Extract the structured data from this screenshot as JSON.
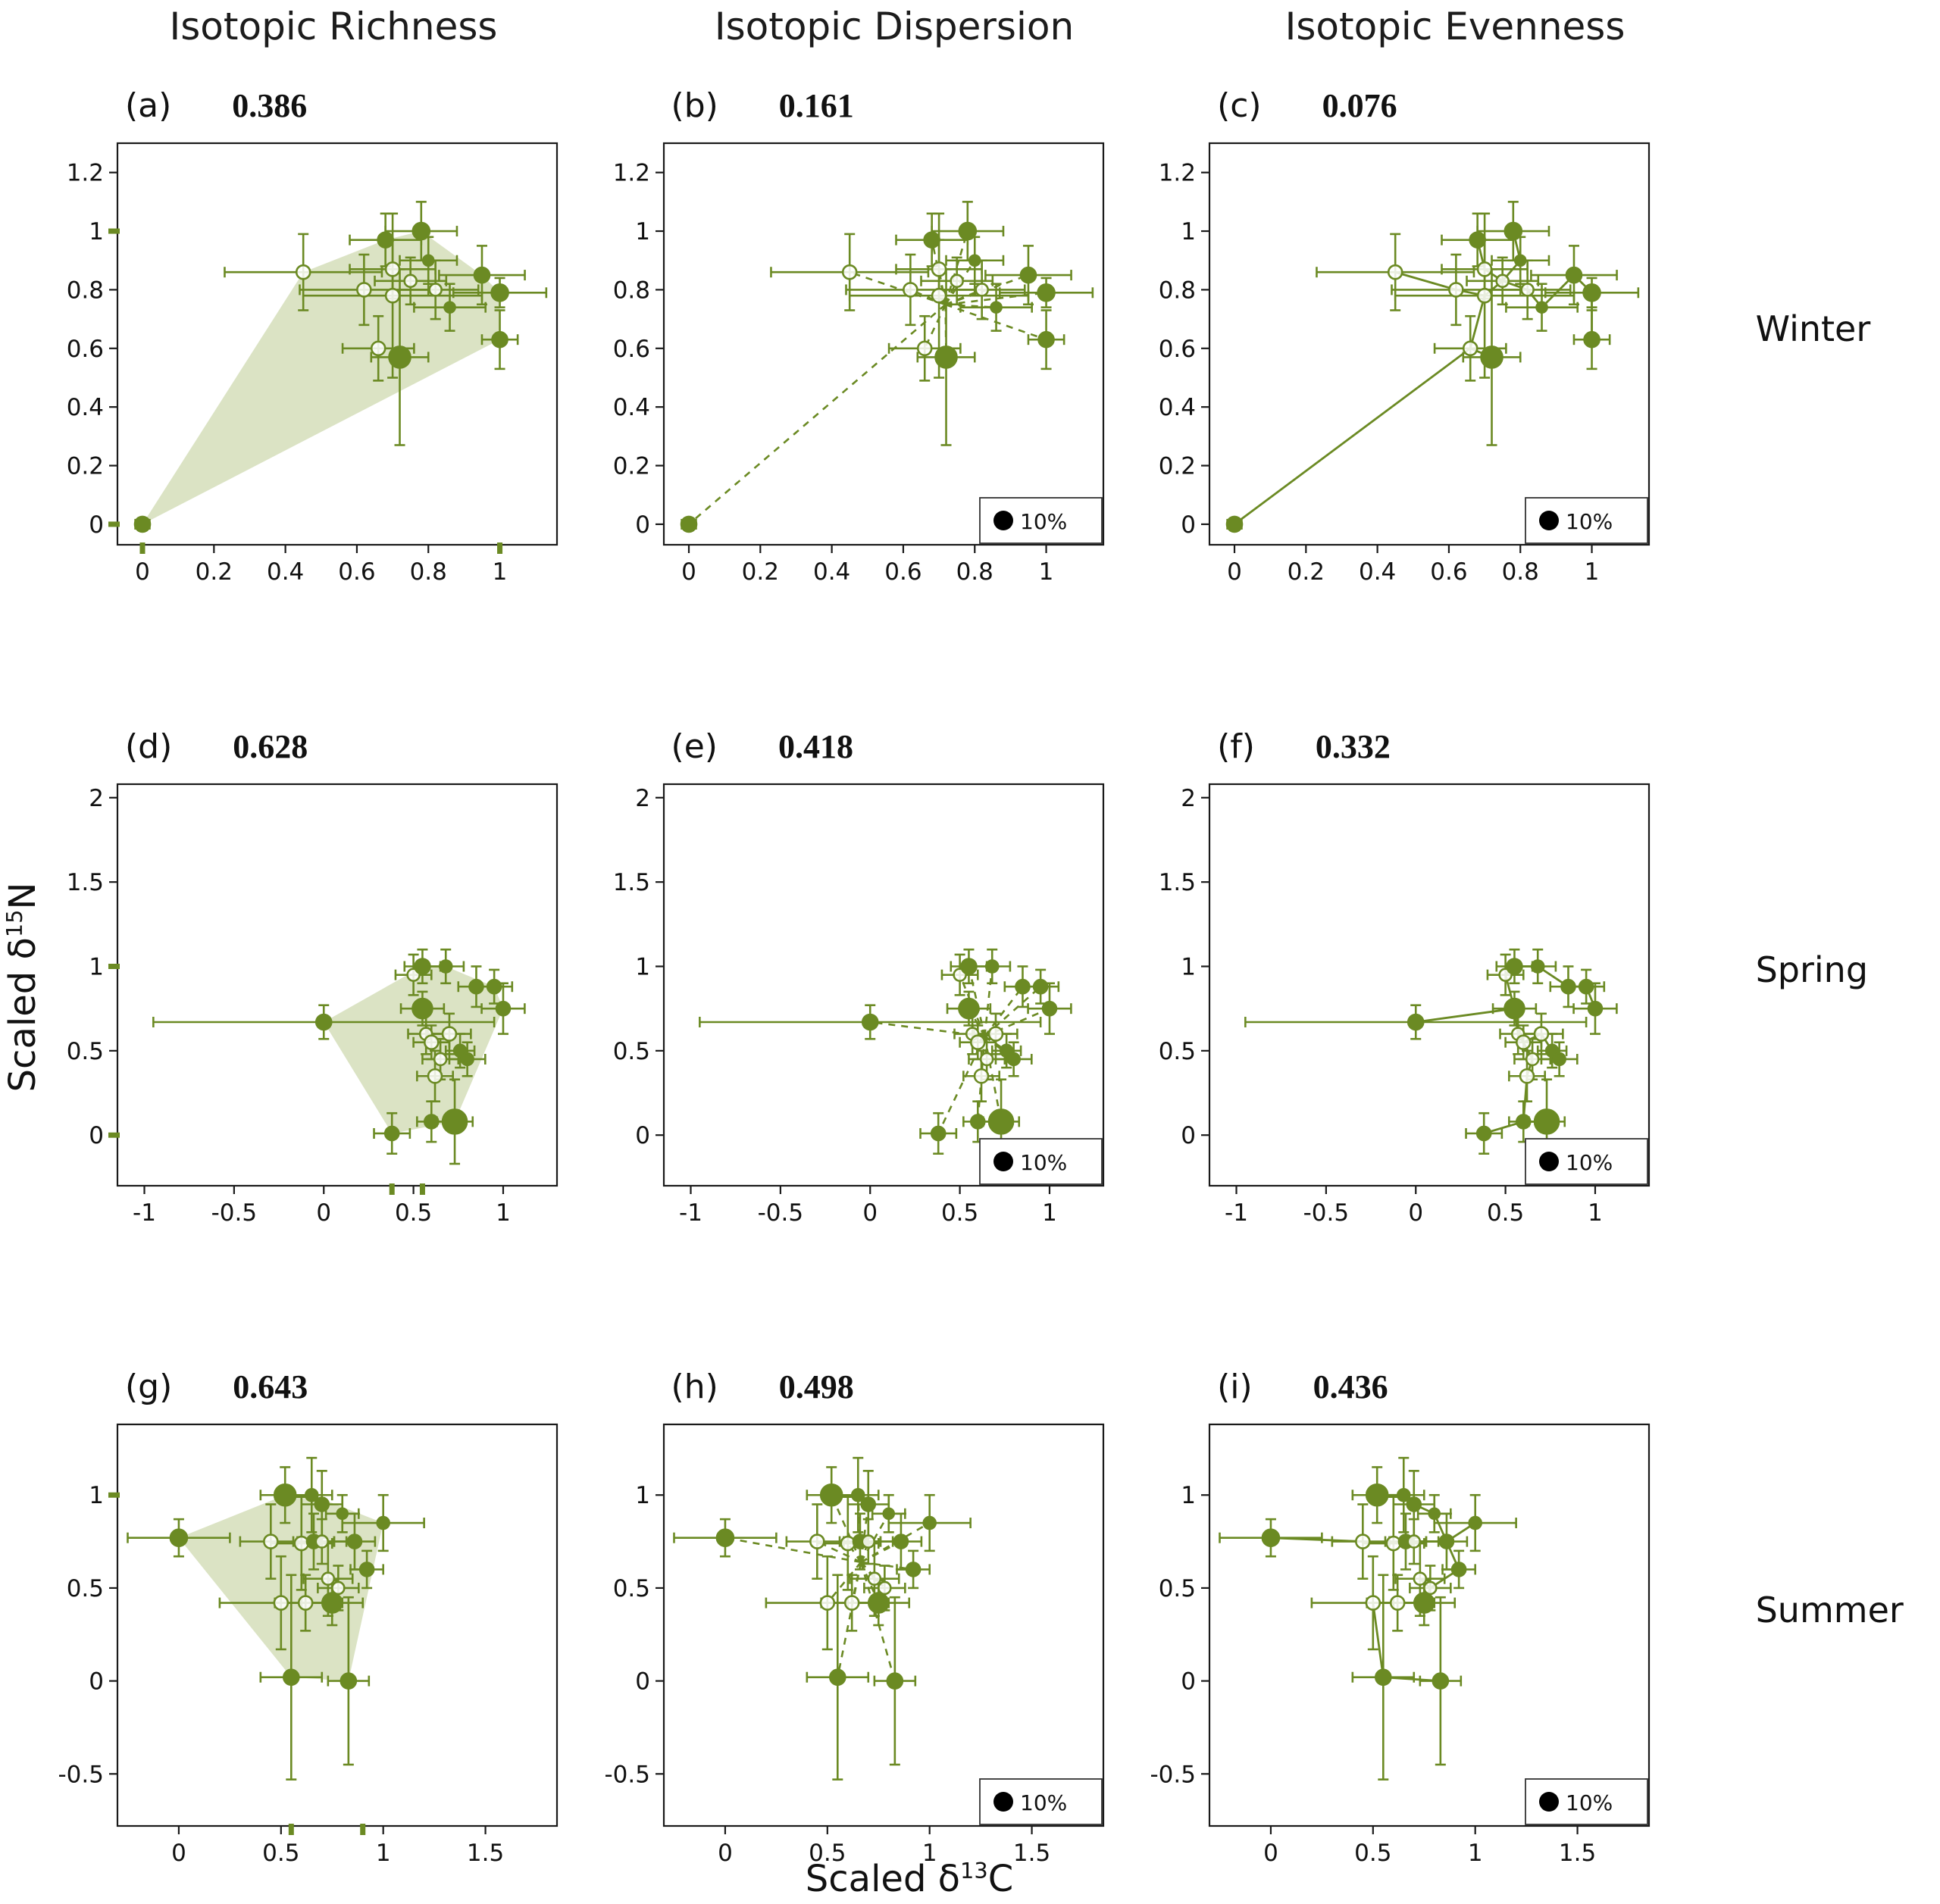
{
  "figure": {
    "column_titles": [
      "Isotopic Richness",
      "Isotopic Dispersion",
      "Isotopic Evenness"
    ],
    "row_labels": [
      "Winter",
      "Spring",
      "Summer"
    ],
    "x_axis_label": {
      "prefix": "Scaled δ",
      "sup": "13",
      "suffix": "C"
    },
    "y_axis_label": {
      "prefix": "Scaled δ",
      "sup": "15",
      "suffix": "N"
    },
    "colors": {
      "accent": "#6b8a23",
      "hull": "#b8c789",
      "legend_dot": "#000000",
      "axis": "#1a1a1a"
    }
  },
  "chart_data": {
    "type": "scatter",
    "legend_label": "10%",
    "panels": [
      {
        "letter": "(a)",
        "value": "0.386",
        "season": 0,
        "overlay": "hull",
        "legend": false
      },
      {
        "letter": "(b)",
        "value": "0.161",
        "season": 0,
        "overlay": "star",
        "legend": true
      },
      {
        "letter": "(c)",
        "value": "0.076",
        "season": 0,
        "overlay": "mst",
        "legend": true
      },
      {
        "letter": "(d)",
        "value": "0.628",
        "season": 1,
        "overlay": "hull",
        "legend": false
      },
      {
        "letter": "(e)",
        "value": "0.418",
        "season": 1,
        "overlay": "star",
        "legend": true
      },
      {
        "letter": "(f)",
        "value": "0.332",
        "season": 1,
        "overlay": "mst",
        "legend": true
      },
      {
        "letter": "(g)",
        "value": "0.643",
        "season": 2,
        "overlay": "hull",
        "legend": false
      },
      {
        "letter": "(h)",
        "value": "0.498",
        "season": 2,
        "overlay": "star",
        "legend": true
      },
      {
        "letter": "(i)",
        "value": "0.436",
        "season": 2,
        "overlay": "mst",
        "legend": true
      }
    ],
    "seasons": [
      {
        "name": "Winter",
        "x": {
          "min": -0.07,
          "max": 1.16,
          "ticks": [
            0,
            0.2,
            0.4,
            0.6,
            0.8,
            1
          ]
        },
        "y": {
          "min": -0.07,
          "max": 1.3,
          "ticks": [
            0,
            0.2,
            0.4,
            0.6,
            0.8,
            1,
            1.2
          ]
        },
        "rug_x": [
          0,
          1
        ],
        "rug_y": [
          0,
          1
        ],
        "points": [
          [
            0.0,
            0.0,
            0.02,
            0.02,
            10,
            1
          ],
          [
            0.45,
            0.86,
            0.22,
            0.13,
            9,
            0
          ],
          [
            0.62,
            0.8,
            0.18,
            0.12,
            9,
            0
          ],
          [
            0.66,
            0.6,
            0.1,
            0.11,
            9,
            0
          ],
          [
            0.68,
            0.97,
            0.1,
            0.09,
            10,
            1
          ],
          [
            0.7,
            0.87,
            0.12,
            0.1,
            9,
            0
          ],
          [
            0.7,
            0.78,
            0.25,
            0.28,
            9,
            0
          ],
          [
            0.72,
            0.57,
            0.08,
            0.3,
            14,
            1
          ],
          [
            0.75,
            0.83,
            0.1,
            0.08,
            8,
            0
          ],
          [
            0.78,
            1.0,
            0.1,
            0.1,
            11,
            1
          ],
          [
            0.8,
            0.9,
            0.08,
            0.08,
            7,
            1
          ],
          [
            0.82,
            0.8,
            0.12,
            0.1,
            8,
            0
          ],
          [
            0.86,
            0.74,
            0.1,
            0.08,
            7,
            1
          ],
          [
            0.95,
            0.85,
            0.12,
            0.1,
            10,
            1
          ],
          [
            1.0,
            0.79,
            0.13,
            0.05,
            11,
            1
          ],
          [
            1.0,
            0.63,
            0.05,
            0.1,
            10,
            1
          ]
        ]
      },
      {
        "name": "Spring",
        "x": {
          "min": -1.15,
          "max": 1.3,
          "ticks": [
            -1,
            -0.5,
            0,
            0.5,
            1
          ]
        },
        "y": {
          "min": -0.3,
          "max": 2.08,
          "ticks": [
            0,
            0.5,
            1,
            1.5,
            2
          ]
        },
        "rug_x": [
          0.38,
          0.55
        ],
        "rug_y": [
          0,
          1
        ],
        "points": [
          [
            0.0,
            0.67,
            0.95,
            0.1,
            10,
            1
          ],
          [
            0.38,
            0.01,
            0.1,
            0.12,
            9,
            1
          ],
          [
            0.5,
            0.95,
            0.1,
            0.12,
            8,
            0
          ],
          [
            0.55,
            1.0,
            0.1,
            0.1,
            10,
            1
          ],
          [
            0.55,
            0.75,
            0.12,
            0.1,
            13,
            1
          ],
          [
            0.57,
            0.6,
            0.1,
            0.12,
            8,
            0
          ],
          [
            0.6,
            0.55,
            0.1,
            0.1,
            9,
            0
          ],
          [
            0.6,
            0.08,
            0.08,
            0.12,
            9,
            1
          ],
          [
            0.62,
            0.35,
            0.1,
            0.15,
            9,
            0
          ],
          [
            0.65,
            0.45,
            0.1,
            0.12,
            8,
            0
          ],
          [
            0.68,
            1.0,
            0.1,
            0.1,
            8,
            1
          ],
          [
            0.7,
            0.6,
            0.12,
            0.12,
            9,
            0
          ],
          [
            0.73,
            0.08,
            0.1,
            0.25,
            16,
            1
          ],
          [
            0.76,
            0.5,
            0.08,
            0.1,
            8,
            1
          ],
          [
            0.8,
            0.45,
            0.1,
            0.1,
            8,
            1
          ],
          [
            0.85,
            0.88,
            0.1,
            0.12,
            9,
            1
          ],
          [
            0.95,
            0.88,
            0.1,
            0.1,
            9,
            1
          ],
          [
            1.0,
            0.75,
            0.12,
            0.15,
            9,
            1
          ]
        ]
      },
      {
        "name": "Summer",
        "x": {
          "min": -0.3,
          "max": 1.85,
          "ticks": [
            0,
            0.5,
            1,
            1.5
          ]
        },
        "y": {
          "min": -0.78,
          "max": 1.38,
          "ticks": [
            -0.5,
            0,
            0.5,
            1
          ]
        },
        "rug_x": [
          0.55,
          0.9
        ],
        "rug_y": [
          1
        ],
        "points": [
          [
            0.0,
            0.77,
            0.25,
            0.1,
            11,
            1
          ],
          [
            0.45,
            0.75,
            0.15,
            0.2,
            9,
            0
          ],
          [
            0.52,
            1.0,
            0.12,
            0.15,
            14,
            1
          ],
          [
            0.5,
            0.42,
            0.3,
            0.25,
            9,
            0
          ],
          [
            0.55,
            0.02,
            0.15,
            0.55,
            10,
            1
          ],
          [
            0.6,
            0.74,
            0.15,
            0.25,
            9,
            0
          ],
          [
            0.62,
            0.42,
            0.15,
            0.15,
            9,
            0
          ],
          [
            0.65,
            1.0,
            0.1,
            0.2,
            8,
            1
          ],
          [
            0.66,
            0.75,
            0.1,
            0.15,
            9,
            1
          ],
          [
            0.7,
            0.95,
            0.1,
            0.18,
            9,
            1
          ],
          [
            0.7,
            0.75,
            0.12,
            0.12,
            8,
            0
          ],
          [
            0.73,
            0.55,
            0.12,
            0.2,
            8,
            0
          ],
          [
            0.75,
            0.42,
            0.15,
            0.12,
            13,
            1
          ],
          [
            0.78,
            0.5,
            0.1,
            0.12,
            8,
            0
          ],
          [
            0.8,
            0.9,
            0.08,
            0.1,
            7,
            1
          ],
          [
            0.83,
            0.0,
            0.1,
            0.45,
            10,
            1
          ],
          [
            0.86,
            0.75,
            0.1,
            0.15,
            9,
            1
          ],
          [
            0.92,
            0.6,
            0.08,
            0.1,
            9,
            1
          ],
          [
            1.0,
            0.85,
            0.2,
            0.15,
            8,
            1
          ]
        ]
      }
    ]
  }
}
